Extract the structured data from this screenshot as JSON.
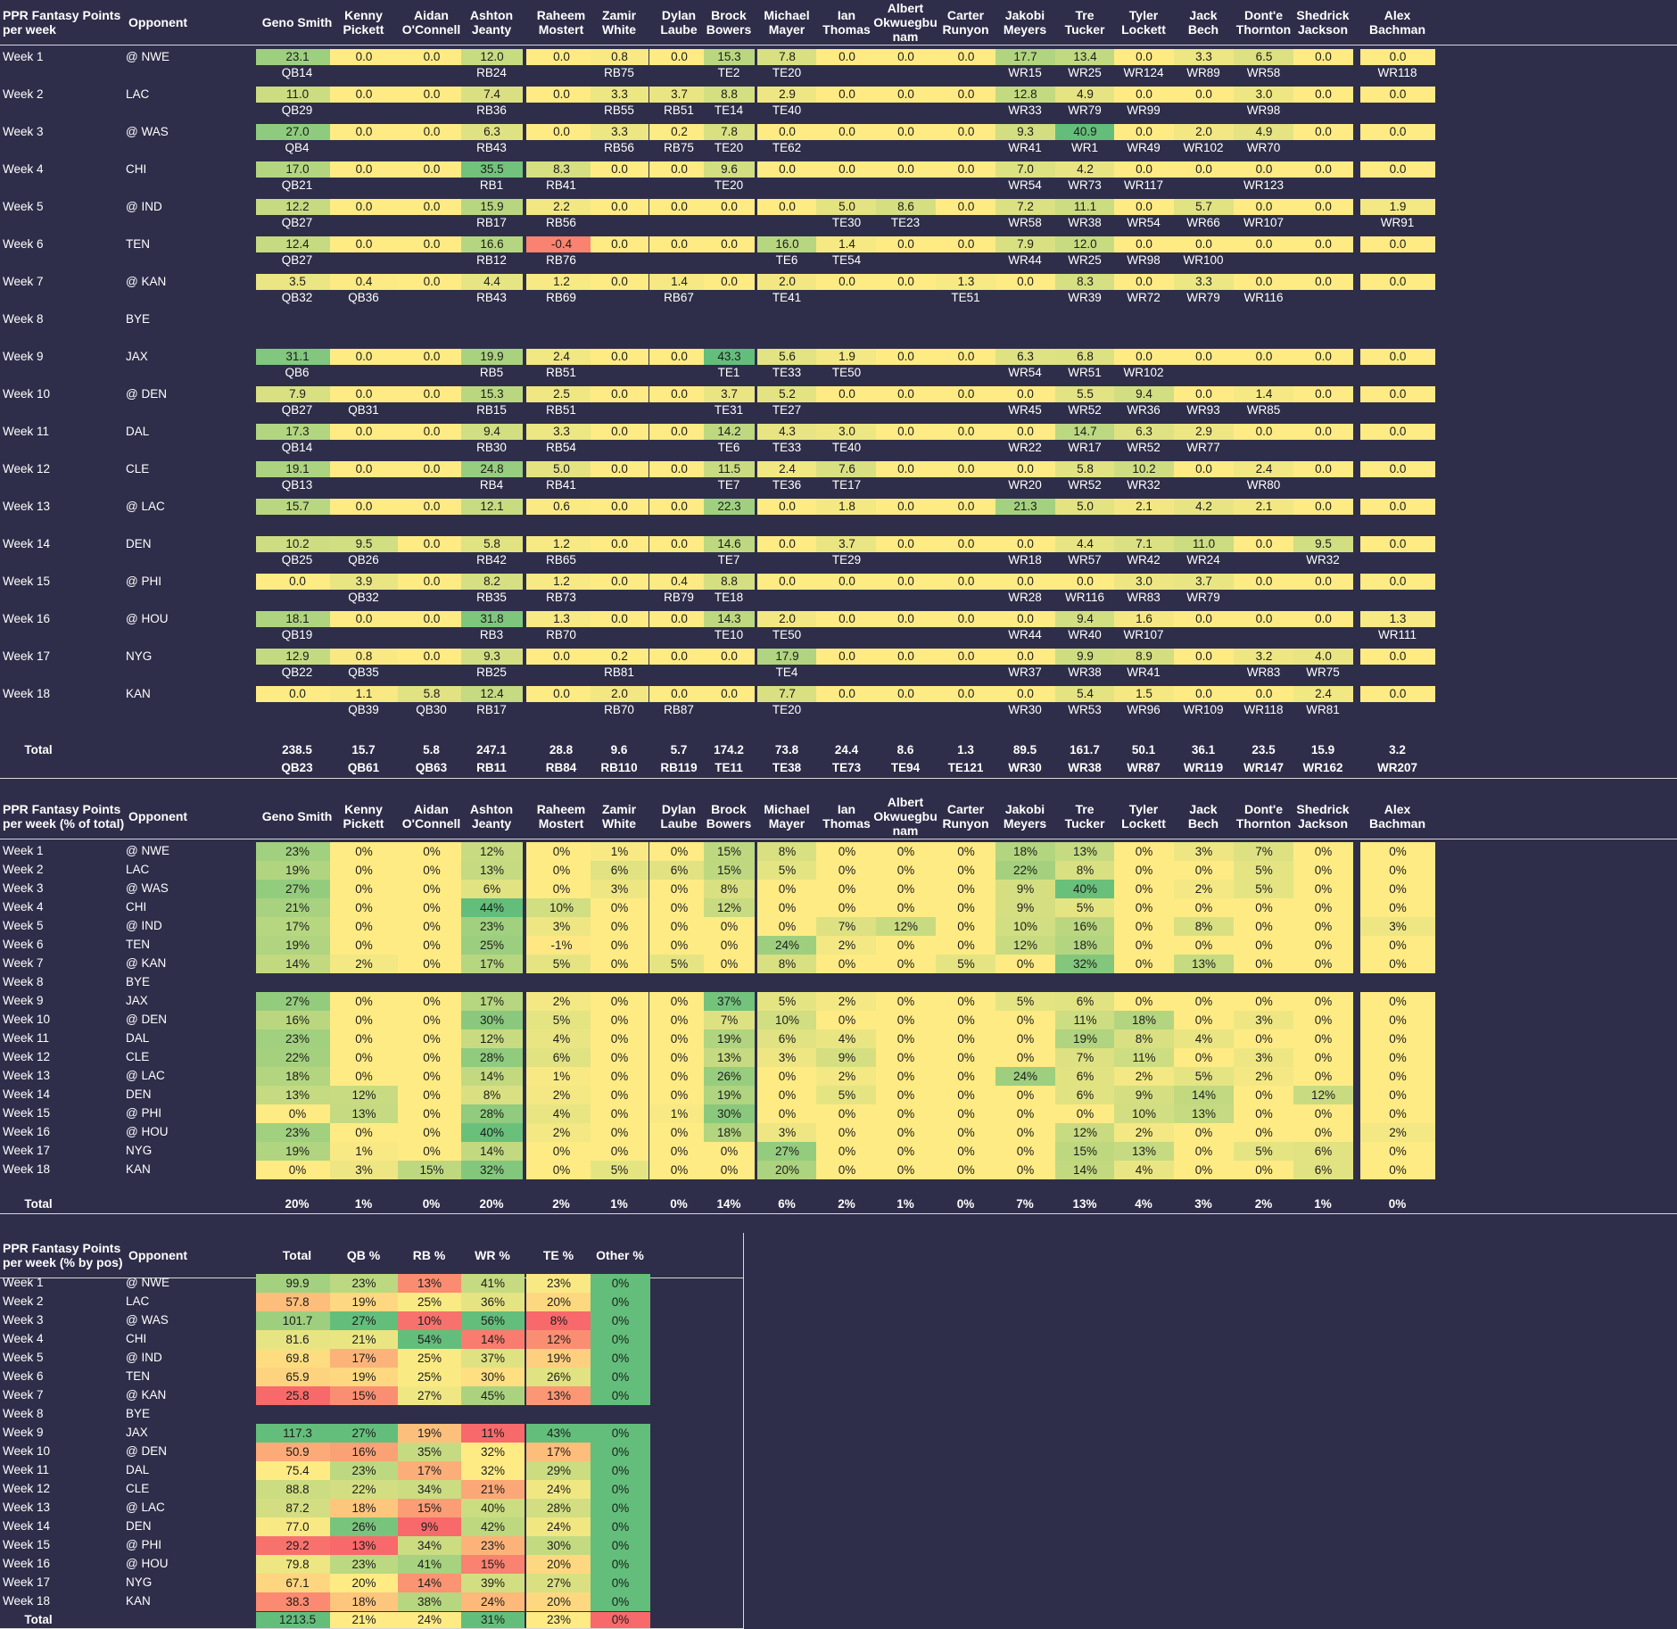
{
  "colors": {
    "bg": "#2e2e4a",
    "header_line": "#d8d8d8"
  },
  "players": [
    "Geno Smith",
    "Kenny Pickett",
    "Aidan O'Connell",
    "Ashton Jeanty",
    "Raheem Mostert",
    "Zamir White",
    "Dylan Laube",
    "Brock Bowers",
    "Michael Mayer",
    "Ian Thomas",
    "Albert Okwuegbunam",
    "Carter Runyon",
    "Jakobi Meyers",
    "Tre Tucker",
    "Tyler Lockett",
    "Jack Bech",
    "Dont'e Thornton",
    "Shedrick Jackson",
    "Alex Bachman"
  ],
  "players_display": [
    "Geno Smith",
    "Kenny\nPickett",
    "Aidan\nO'Connell",
    "Ashton\nJeanty",
    "Raheem\nMostert",
    "Zamir\nWhite",
    "Dylan\nLaube",
    "Brock\nBowers",
    "Michael\nMayer",
    "Ian Thomas",
    "Albert\nOkwuegbu\nnam",
    "Carter\nRunyon",
    "Jakobi\nMeyers",
    "Tre Tucker",
    "Tyler\nLockett",
    "Jack Bech",
    "Dont'e\nThornton",
    "Shedrick\nJackson",
    "Alex Bachman"
  ],
  "weeks": [
    "Week 1",
    "Week 2",
    "Week 3",
    "Week 4",
    "Week 5",
    "Week 6",
    "Week 7",
    "Week 8",
    "Week 9",
    "Week 10",
    "Week 11",
    "Week 12",
    "Week 13",
    "Week 14",
    "Week 15",
    "Week 16",
    "Week 17",
    "Week 18"
  ],
  "opponents": [
    "@ NWE",
    "LAC",
    "@ WAS",
    "CHI",
    "@ IND",
    "TEN",
    "@ KAN",
    "BYE",
    "JAX",
    "@ DEN",
    "DAL",
    "CLE",
    "@ LAC",
    "DEN",
    "@ PHI",
    "@ HOU",
    "NYG",
    "KAN"
  ],
  "table1": {
    "title": "PPR Fantasy Points\nper week",
    "opp_header": "Opponent",
    "total_label": "Total",
    "points": [
      [
        "23.1",
        "0.0",
        "0.0",
        "12.0",
        "0.0",
        "0.8",
        "0.0",
        "15.3",
        "7.8",
        "0.0",
        "0.0",
        "0.0",
        "17.7",
        "13.4",
        "0.0",
        "3.3",
        "6.5",
        "0.0",
        "0.0"
      ],
      [
        "11.0",
        "0.0",
        "0.0",
        "7.4",
        "0.0",
        "3.3",
        "3.7",
        "8.8",
        "2.9",
        "0.0",
        "0.0",
        "0.0",
        "12.8",
        "4.9",
        "0.0",
        "0.0",
        "3.0",
        "0.0",
        "0.0"
      ],
      [
        "27.0",
        "0.0",
        "0.0",
        "6.3",
        "0.0",
        "3.3",
        "0.2",
        "7.8",
        "0.0",
        "0.0",
        "0.0",
        "0.0",
        "9.3",
        "40.9",
        "0.0",
        "2.0",
        "4.9",
        "0.0",
        "0.0"
      ],
      [
        "17.0",
        "0.0",
        "0.0",
        "35.5",
        "8.3",
        "0.0",
        "0.0",
        "9.6",
        "0.0",
        "0.0",
        "0.0",
        "0.0",
        "7.0",
        "4.2",
        "0.0",
        "0.0",
        "0.0",
        "0.0",
        "0.0"
      ],
      [
        "12.2",
        "0.0",
        "0.0",
        "15.9",
        "2.2",
        "0.0",
        "0.0",
        "0.0",
        "0.0",
        "5.0",
        "8.6",
        "0.0",
        "7.2",
        "11.1",
        "0.0",
        "5.7",
        "0.0",
        "0.0",
        "1.9"
      ],
      [
        "12.4",
        "0.0",
        "0.0",
        "16.6",
        "-0.4",
        "0.0",
        "0.0",
        "0.0",
        "16.0",
        "1.4",
        "0.0",
        "0.0",
        "7.9",
        "12.0",
        "0.0",
        "0.0",
        "0.0",
        "0.0",
        "0.0"
      ],
      [
        "3.5",
        "0.4",
        "0.0",
        "4.4",
        "1.2",
        "0.0",
        "1.4",
        "0.0",
        "2.0",
        "0.0",
        "0.0",
        "1.3",
        "0.0",
        "8.3",
        "0.0",
        "3.3",
        "0.0",
        "0.0",
        "0.0"
      ],
      null,
      [
        "31.1",
        "0.0",
        "0.0",
        "19.9",
        "2.4",
        "0.0",
        "0.0",
        "43.3",
        "5.6",
        "1.9",
        "0.0",
        "0.0",
        "6.3",
        "6.8",
        "0.0",
        "0.0",
        "0.0",
        "0.0",
        "0.0"
      ],
      [
        "7.9",
        "0.0",
        "0.0",
        "15.3",
        "2.5",
        "0.0",
        "0.0",
        "3.7",
        "5.2",
        "0.0",
        "0.0",
        "0.0",
        "0.0",
        "5.5",
        "9.4",
        "0.0",
        "1.4",
        "0.0",
        "0.0"
      ],
      [
        "17.3",
        "0.0",
        "0.0",
        "9.4",
        "3.3",
        "0.0",
        "0.0",
        "14.2",
        "4.3",
        "3.0",
        "0.0",
        "0.0",
        "0.0",
        "14.7",
        "6.3",
        "2.9",
        "0.0",
        "0.0",
        "0.0"
      ],
      [
        "19.1",
        "0.0",
        "0.0",
        "24.8",
        "5.0",
        "0.0",
        "0.0",
        "11.5",
        "2.4",
        "7.6",
        "0.0",
        "0.0",
        "0.0",
        "5.8",
        "10.2",
        "0.0",
        "2.4",
        "0.0",
        "0.0"
      ],
      [
        "15.7",
        "0.0",
        "0.0",
        "12.1",
        "0.6",
        "0.0",
        "0.0",
        "22.3",
        "0.0",
        "1.8",
        "0.0",
        "0.0",
        "21.3",
        "5.0",
        "2.1",
        "4.2",
        "2.1",
        "0.0",
        "0.0"
      ],
      [
        "10.2",
        "9.5",
        "0.0",
        "5.8",
        "1.2",
        "0.0",
        "0.0",
        "14.6",
        "0.0",
        "3.7",
        "0.0",
        "0.0",
        "0.0",
        "4.4",
        "7.1",
        "11.0",
        "0.0",
        "9.5",
        "0.0"
      ],
      [
        "0.0",
        "3.9",
        "0.0",
        "8.2",
        "1.2",
        "0.0",
        "0.4",
        "8.8",
        "0.0",
        "0.0",
        "0.0",
        "0.0",
        "0.0",
        "0.0",
        "3.0",
        "3.7",
        "0.0",
        "0.0",
        "0.0"
      ],
      [
        "18.1",
        "0.0",
        "0.0",
        "31.8",
        "1.3",
        "0.0",
        "0.0",
        "14.3",
        "2.0",
        "0.0",
        "0.0",
        "0.0",
        "0.0",
        "9.4",
        "1.6",
        "0.0",
        "0.0",
        "0.0",
        "1.3"
      ],
      [
        "12.9",
        "0.8",
        "0.0",
        "9.3",
        "0.0",
        "0.2",
        "0.0",
        "0.0",
        "17.9",
        "0.0",
        "0.0",
        "0.0",
        "0.0",
        "9.9",
        "8.9",
        "0.0",
        "3.2",
        "4.0",
        "0.0"
      ],
      [
        "0.0",
        "1.1",
        "5.8",
        "12.4",
        "0.0",
        "2.0",
        "0.0",
        "0.0",
        "7.7",
        "0.0",
        "0.0",
        "0.0",
        "0.0",
        "5.4",
        "1.5",
        "0.0",
        "0.0",
        "2.4",
        "0.0"
      ]
    ],
    "ranks": [
      [
        "QB14",
        "",
        "",
        "RB24",
        "",
        "RB75",
        "",
        "TE2",
        "TE20",
        "",
        "",
        "",
        "WR15",
        "WR25",
        "WR124",
        "WR89",
        "WR58",
        "",
        "WR118"
      ],
      [
        "QB29",
        "",
        "",
        "RB36",
        "",
        "RB55",
        "RB51",
        "TE14",
        "TE40",
        "",
        "",
        "",
        "WR33",
        "WR79",
        "WR99",
        "",
        "WR98",
        "",
        ""
      ],
      [
        "QB4",
        "",
        "",
        "RB43",
        "",
        "RB56",
        "RB75",
        "TE20",
        "TE62",
        "",
        "",
        "",
        "WR41",
        "WR1",
        "WR49",
        "WR102",
        "WR70",
        "",
        ""
      ],
      [
        "QB21",
        "",
        "",
        "RB1",
        "RB41",
        "",
        "",
        "TE20",
        "",
        "",
        "",
        "",
        "WR54",
        "WR73",
        "WR117",
        "",
        "WR123",
        "",
        ""
      ],
      [
        "QB27",
        "",
        "",
        "RB17",
        "RB56",
        "",
        "",
        "",
        "",
        "TE30",
        "TE23",
        "",
        "WR58",
        "WR38",
        "WR54",
        "WR66",
        "WR107",
        "",
        "WR91"
      ],
      [
        "QB27",
        "",
        "",
        "RB12",
        "RB76",
        "",
        "",
        "",
        "TE6",
        "TE54",
        "",
        "",
        "WR44",
        "WR25",
        "WR98",
        "WR100",
        "",
        "",
        ""
      ],
      [
        "QB32",
        "QB36",
        "",
        "RB43",
        "RB69",
        "",
        "RB67",
        "",
        "TE41",
        "",
        "",
        "TE51",
        "",
        "WR39",
        "WR72",
        "WR79",
        "WR116",
        "",
        ""
      ],
      null,
      [
        "QB6",
        "",
        "",
        "RB5",
        "RB51",
        "",
        "",
        "TE1",
        "TE33",
        "TE50",
        "",
        "",
        "WR54",
        "WR51",
        "WR102",
        "",
        "",
        "",
        ""
      ],
      [
        "QB27",
        "QB31",
        "",
        "RB15",
        "RB51",
        "",
        "",
        "TE31",
        "TE27",
        "",
        "",
        "",
        "WR45",
        "WR52",
        "WR36",
        "WR93",
        "WR85",
        "",
        ""
      ],
      [
        "QB14",
        "",
        "",
        "RB30",
        "RB54",
        "",
        "",
        "TE6",
        "TE33",
        "TE40",
        "",
        "",
        "WR22",
        "WR17",
        "WR52",
        "WR77",
        "",
        "",
        ""
      ],
      [
        "QB13",
        "",
        "",
        "RB4",
        "RB41",
        "",
        "",
        "TE7",
        "TE36",
        "TE17",
        "",
        "",
        "WR20",
        "WR52",
        "WR32",
        "",
        "WR80",
        "",
        ""
      ],
      [
        "",
        "",
        "",
        "",
        "",
        "",
        "",
        "",
        "",
        "",
        "",
        "",
        "",
        "",
        "",
        "",
        "",
        "",
        ""
      ],
      [
        "QB25",
        "QB26",
        "",
        "RB42",
        "RB65",
        "",
        "",
        "TE7",
        "",
        "TE29",
        "",
        "",
        "WR18",
        "WR57",
        "WR42",
        "WR24",
        "",
        "WR32",
        ""
      ],
      [
        "",
        "QB32",
        "",
        "RB35",
        "RB73",
        "",
        "RB79",
        "TE18",
        "",
        "",
        "",
        "",
        "WR28",
        "WR116",
        "WR83",
        "WR79",
        "",
        "",
        ""
      ],
      [
        "QB19",
        "",
        "",
        "RB3",
        "RB70",
        "",
        "",
        "TE10",
        "TE50",
        "",
        "",
        "",
        "WR44",
        "WR40",
        "WR107",
        "",
        "",
        "",
        "WR111"
      ],
      [
        "QB22",
        "QB35",
        "",
        "RB25",
        "",
        "RB81",
        "",
        "",
        "TE4",
        "",
        "",
        "",
        "WR37",
        "WR38",
        "WR41",
        "",
        "WR83",
        "WR75",
        ""
      ],
      [
        "",
        "QB39",
        "QB30",
        "RB17",
        "",
        "RB70",
        "RB87",
        "",
        "TE20",
        "",
        "",
        "",
        "WR30",
        "WR53",
        "WR96",
        "WR109",
        "WR118",
        "WR81",
        ""
      ]
    ],
    "totals": [
      "238.5",
      "15.7",
      "5.8",
      "247.1",
      "28.8",
      "9.6",
      "5.7",
      "174.2",
      "73.8",
      "24.4",
      "8.6",
      "1.3",
      "89.5",
      "161.7",
      "50.1",
      "36.1",
      "23.5",
      "15.9",
      "3.2"
    ],
    "total_ranks": [
      "QB23",
      "QB61",
      "QB63",
      "RB11",
      "RB84",
      "RB110",
      "RB119",
      "TE11",
      "TE38",
      "TE73",
      "TE94",
      "TE121",
      "WR30",
      "WR38",
      "WR87",
      "WR119",
      "WR147",
      "WR162",
      "WR207"
    ]
  },
  "table2": {
    "title": "PPR Fantasy Points\nper week (% of total)",
    "opp_header": "Opponent",
    "total_label": "Total",
    "pcts": [
      [
        "23%",
        "0%",
        "0%",
        "12%",
        "0%",
        "1%",
        "0%",
        "15%",
        "8%",
        "0%",
        "0%",
        "0%",
        "18%",
        "13%",
        "0%",
        "3%",
        "7%",
        "0%",
        "0%"
      ],
      [
        "19%",
        "0%",
        "0%",
        "13%",
        "0%",
        "6%",
        "6%",
        "15%",
        "5%",
        "0%",
        "0%",
        "0%",
        "22%",
        "8%",
        "0%",
        "0%",
        "5%",
        "0%",
        "0%"
      ],
      [
        "27%",
        "0%",
        "0%",
        "6%",
        "0%",
        "3%",
        "0%",
        "8%",
        "0%",
        "0%",
        "0%",
        "0%",
        "9%",
        "40%",
        "0%",
        "2%",
        "5%",
        "0%",
        "0%"
      ],
      [
        "21%",
        "0%",
        "0%",
        "44%",
        "10%",
        "0%",
        "0%",
        "12%",
        "0%",
        "0%",
        "0%",
        "0%",
        "9%",
        "5%",
        "0%",
        "0%",
        "0%",
        "0%",
        "0%"
      ],
      [
        "17%",
        "0%",
        "0%",
        "23%",
        "3%",
        "0%",
        "0%",
        "0%",
        "0%",
        "7%",
        "12%",
        "0%",
        "10%",
        "16%",
        "0%",
        "8%",
        "0%",
        "0%",
        "3%"
      ],
      [
        "19%",
        "0%",
        "0%",
        "25%",
        "-1%",
        "0%",
        "0%",
        "0%",
        "24%",
        "2%",
        "0%",
        "0%",
        "12%",
        "18%",
        "0%",
        "0%",
        "0%",
        "0%",
        "0%"
      ],
      [
        "14%",
        "2%",
        "0%",
        "17%",
        "5%",
        "0%",
        "5%",
        "0%",
        "8%",
        "0%",
        "0%",
        "5%",
        "0%",
        "32%",
        "0%",
        "13%",
        "0%",
        "0%",
        "0%"
      ],
      null,
      [
        "27%",
        "0%",
        "0%",
        "17%",
        "2%",
        "0%",
        "0%",
        "37%",
        "5%",
        "2%",
        "0%",
        "0%",
        "5%",
        "6%",
        "0%",
        "0%",
        "0%",
        "0%",
        "0%"
      ],
      [
        "16%",
        "0%",
        "0%",
        "30%",
        "5%",
        "0%",
        "0%",
        "7%",
        "10%",
        "0%",
        "0%",
        "0%",
        "0%",
        "11%",
        "18%",
        "0%",
        "3%",
        "0%",
        "0%"
      ],
      [
        "23%",
        "0%",
        "0%",
        "12%",
        "4%",
        "0%",
        "0%",
        "19%",
        "6%",
        "4%",
        "0%",
        "0%",
        "0%",
        "19%",
        "8%",
        "4%",
        "0%",
        "0%",
        "0%"
      ],
      [
        "22%",
        "0%",
        "0%",
        "28%",
        "6%",
        "0%",
        "0%",
        "13%",
        "3%",
        "9%",
        "0%",
        "0%",
        "0%",
        "7%",
        "11%",
        "0%",
        "3%",
        "0%",
        "0%"
      ],
      [
        "18%",
        "0%",
        "0%",
        "14%",
        "1%",
        "0%",
        "0%",
        "26%",
        "0%",
        "2%",
        "0%",
        "0%",
        "24%",
        "6%",
        "2%",
        "5%",
        "2%",
        "0%",
        "0%"
      ],
      [
        "13%",
        "12%",
        "0%",
        "8%",
        "2%",
        "0%",
        "0%",
        "19%",
        "0%",
        "5%",
        "0%",
        "0%",
        "0%",
        "6%",
        "9%",
        "14%",
        "0%",
        "12%",
        "0%"
      ],
      [
        "0%",
        "13%",
        "0%",
        "28%",
        "4%",
        "0%",
        "1%",
        "30%",
        "0%",
        "0%",
        "0%",
        "0%",
        "0%",
        "0%",
        "10%",
        "13%",
        "0%",
        "0%",
        "0%"
      ],
      [
        "23%",
        "0%",
        "0%",
        "40%",
        "2%",
        "0%",
        "0%",
        "18%",
        "3%",
        "0%",
        "0%",
        "0%",
        "0%",
        "12%",
        "2%",
        "0%",
        "0%",
        "0%",
        "2%"
      ],
      [
        "19%",
        "1%",
        "0%",
        "14%",
        "0%",
        "0%",
        "0%",
        "0%",
        "27%",
        "0%",
        "0%",
        "0%",
        "0%",
        "15%",
        "13%",
        "0%",
        "5%",
        "6%",
        "0%"
      ],
      [
        "0%",
        "3%",
        "15%",
        "32%",
        "0%",
        "5%",
        "0%",
        "0%",
        "20%",
        "0%",
        "0%",
        "0%",
        "0%",
        "14%",
        "4%",
        "0%",
        "0%",
        "6%",
        "0%"
      ]
    ],
    "totals": [
      "20%",
      "1%",
      "0%",
      "20%",
      "2%",
      "1%",
      "0%",
      "14%",
      "6%",
      "2%",
      "1%",
      "0%",
      "7%",
      "13%",
      "4%",
      "3%",
      "2%",
      "1%",
      "0%"
    ]
  },
  "table3": {
    "title": "PPR Fantasy Points\nper week (% by pos)",
    "headers": [
      "Opponent",
      "Total",
      "QB %",
      "RB %",
      "WR %",
      "TE %",
      "Other %"
    ],
    "total_label": "Total",
    "rows": [
      [
        "99.9",
        "23%",
        "13%",
        "41%",
        "23%",
        "0%"
      ],
      [
        "57.8",
        "19%",
        "25%",
        "36%",
        "20%",
        "0%"
      ],
      [
        "101.7",
        "27%",
        "10%",
        "56%",
        "8%",
        "0%"
      ],
      [
        "81.6",
        "21%",
        "54%",
        "14%",
        "12%",
        "0%"
      ],
      [
        "69.8",
        "17%",
        "25%",
        "37%",
        "19%",
        "0%"
      ],
      [
        "65.9",
        "19%",
        "25%",
        "30%",
        "26%",
        "0%"
      ],
      [
        "25.8",
        "15%",
        "27%",
        "45%",
        "13%",
        "0%"
      ],
      null,
      [
        "117.3",
        "27%",
        "19%",
        "11%",
        "43%",
        "0%"
      ],
      [
        "50.9",
        "16%",
        "35%",
        "32%",
        "17%",
        "0%"
      ],
      [
        "75.4",
        "23%",
        "17%",
        "32%",
        "29%",
        "0%"
      ],
      [
        "88.8",
        "22%",
        "34%",
        "21%",
        "24%",
        "0%"
      ],
      [
        "87.2",
        "18%",
        "15%",
        "40%",
        "28%",
        "0%"
      ],
      [
        "77.0",
        "26%",
        "9%",
        "42%",
        "24%",
        "0%"
      ],
      [
        "29.2",
        "13%",
        "34%",
        "23%",
        "30%",
        "0%"
      ],
      [
        "79.8",
        "23%",
        "41%",
        "15%",
        "20%",
        "0%"
      ],
      [
        "67.1",
        "20%",
        "14%",
        "39%",
        "27%",
        "0%"
      ],
      [
        "38.3",
        "18%",
        "38%",
        "24%",
        "20%",
        "0%"
      ]
    ],
    "totals": [
      "1213.5",
      "21%",
      "24%",
      "31%",
      "23%",
      "0%"
    ]
  }
}
